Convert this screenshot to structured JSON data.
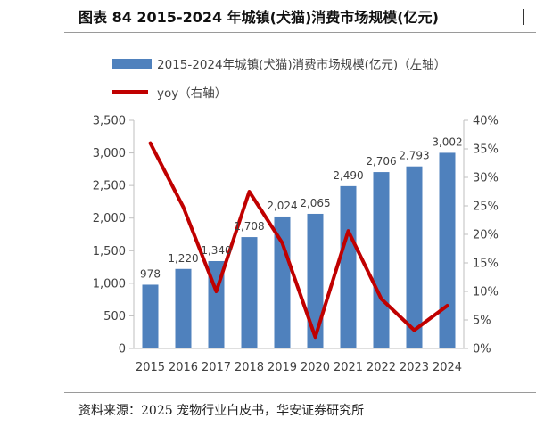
{
  "figure": {
    "title": "图表 84 2015-2024 年城镇(犬猫)消费市场规模(亿元)",
    "source": "资料来源：2025 宠物行业白皮书，华安证券研究所"
  },
  "colors": {
    "bar": "#4f81bd",
    "line": "#c00000",
    "axis": "#bfbfbf",
    "text": "#404040"
  },
  "chart_data": {
    "type": "bar",
    "categories": [
      "2015",
      "2016",
      "2017",
      "2018",
      "2019",
      "2020",
      "2021",
      "2022",
      "2023",
      "2024"
    ],
    "series": [
      {
        "name": "2015-2024年城镇(犬猫)消费市场规模(亿元)（左轴）",
        "type": "bar",
        "axis": "left",
        "values": [
          978,
          1220,
          1340,
          1708,
          2024,
          2065,
          2490,
          2706,
          2793,
          3002
        ],
        "labels": [
          "978",
          "1,220",
          "1,340",
          "1,708",
          "2,024",
          "2,065",
          "2,490",
          "2,706",
          "2,793",
          "3,002"
        ]
      },
      {
        "name": "yoy（右轴）",
        "type": "line",
        "axis": "right",
        "values": [
          0.36,
          0.248,
          0.1,
          0.275,
          0.185,
          0.02,
          0.206,
          0.087,
          0.032,
          0.075
        ]
      }
    ],
    "y_left": {
      "ylim": [
        0,
        3500
      ],
      "ticks": [
        0,
        500,
        1000,
        1500,
        2000,
        2500,
        3000,
        3500
      ],
      "tick_labels": [
        "0",
        "500",
        "1,000",
        "1,500",
        "2,000",
        "2,500",
        "3,000",
        "3,500"
      ]
    },
    "y_right": {
      "ylim": [
        0,
        0.4
      ],
      "ticks": [
        0,
        0.05,
        0.1,
        0.15,
        0.2,
        0.25,
        0.3,
        0.35,
        0.4
      ],
      "tick_labels": [
        "0%",
        "5%",
        "10%",
        "15%",
        "20%",
        "25%",
        "30%",
        "35%",
        "40%"
      ]
    },
    "grid": false,
    "legend": "top-left"
  }
}
